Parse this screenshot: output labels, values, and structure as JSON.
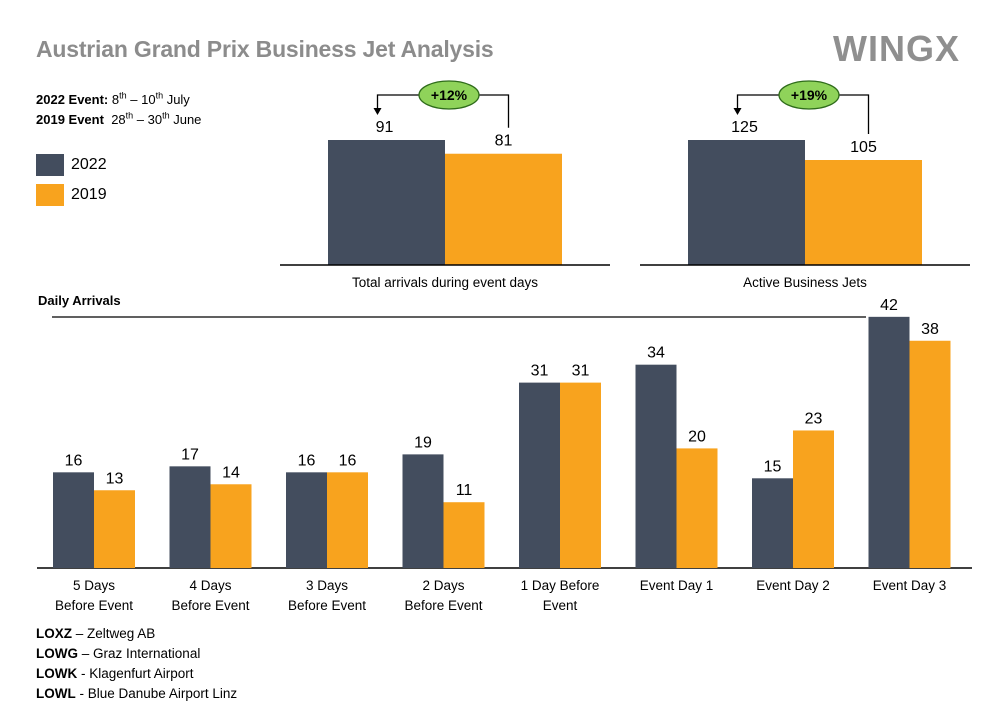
{
  "title": "Austrian Grand Prix Business Jet Analysis",
  "brand": "WINGX",
  "events": [
    {
      "label": "2022 Event:",
      "dates_html_parts": [
        "8",
        "th",
        " – 10",
        "th",
        " July"
      ]
    },
    {
      "label": "2019 Event",
      "dates_html_parts": [
        "28",
        "th",
        " – 30",
        "th",
        " June"
      ]
    }
  ],
  "colors": {
    "y2022": "#434d5e",
    "y2019": "#f8a31e",
    "badge_fill": "#8fd35a",
    "badge_stroke": "#2e6b1a"
  },
  "legend": [
    {
      "label": "2022",
      "color": "#434d5e"
    },
    {
      "label": "2019",
      "color": "#f8a31e"
    }
  ],
  "daily_heading": "Daily Arrivals",
  "airport_codes": [
    {
      "code": "LOXZ",
      "sep": " – ",
      "name": "Zeltweg AB"
    },
    {
      "code": "LOWG",
      "sep": " – ",
      "name": "Graz International"
    },
    {
      "code": "LOWK",
      "sep": " - ",
      "name": "Klagenfurt Airport"
    },
    {
      "code": "LOWL",
      "sep": " - ",
      "name": "Blue Danube Airport  Linz"
    }
  ],
  "chart_data": [
    {
      "type": "bar",
      "xlabel": "Total arrivals during event days",
      "series": [
        {
          "name": "2022",
          "values": [
            91
          ]
        },
        {
          "name": "2019",
          "values": [
            81
          ]
        }
      ],
      "change_label": "+12%"
    },
    {
      "type": "bar",
      "xlabel": "Active Business Jets",
      "series": [
        {
          "name": "2022",
          "values": [
            125
          ]
        },
        {
          "name": "2019",
          "values": [
            105
          ]
        }
      ],
      "change_label": "+19%"
    },
    {
      "type": "bar",
      "title": "Daily Arrivals",
      "categories": [
        [
          "5 Days",
          "Before Event"
        ],
        [
          "4 Days",
          "Before Event"
        ],
        [
          "3 Days",
          "Before Event"
        ],
        [
          "2 Days",
          "Before Event"
        ],
        [
          "1 Day Before",
          "Event"
        ],
        [
          "Event Day 1"
        ],
        [
          "Event Day 2"
        ],
        [
          "Event Day 3"
        ]
      ],
      "series": [
        {
          "name": "2022",
          "values": [
            16,
            17,
            16,
            19,
            31,
            34,
            15,
            42
          ]
        },
        {
          "name": "2019",
          "values": [
            13,
            14,
            16,
            11,
            31,
            20,
            23,
            38
          ]
        }
      ]
    }
  ]
}
